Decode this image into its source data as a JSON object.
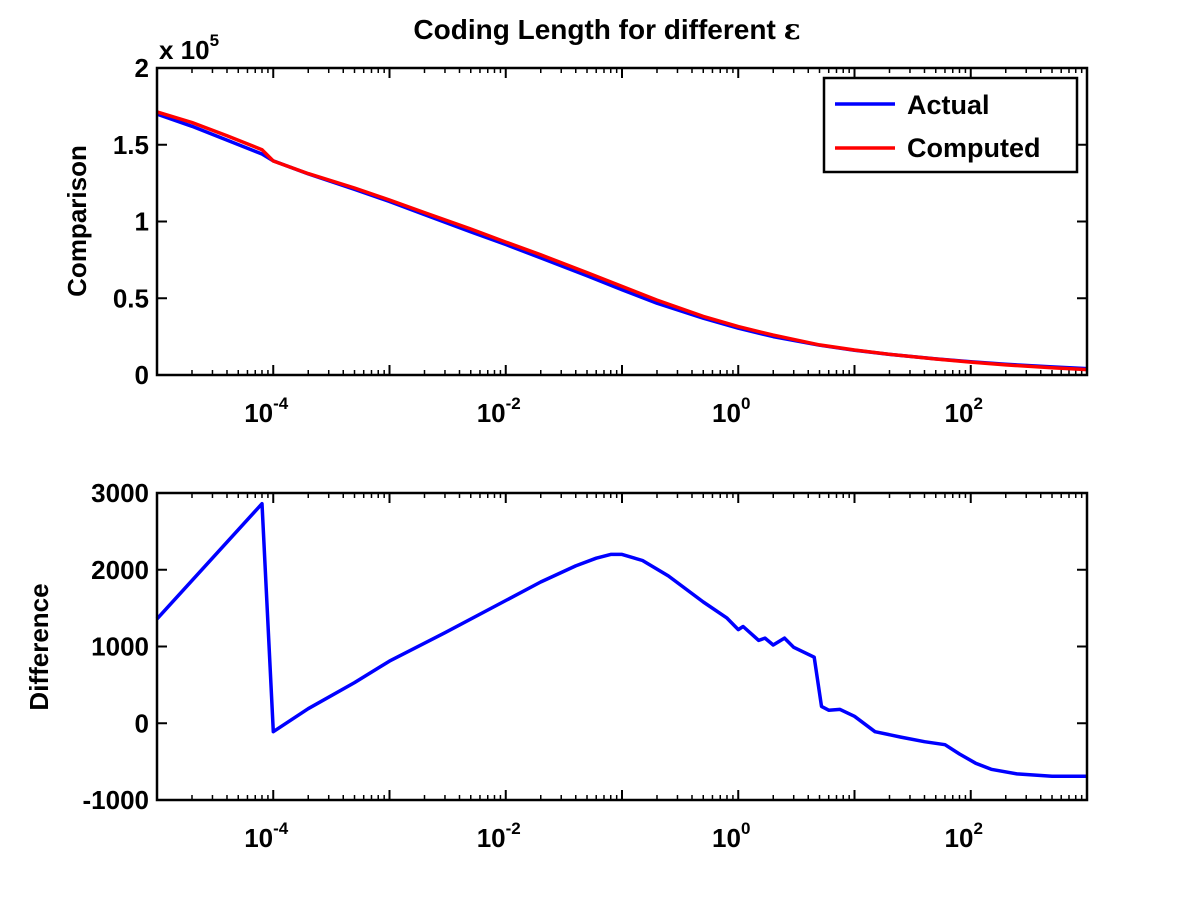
{
  "title_prefix": "Coding Length for different ",
  "title_symbol": "ε",
  "chart_data": [
    {
      "type": "line",
      "ylabel": "Comparison",
      "xscale": "log",
      "xlim": [
        1e-05,
        1000
      ],
      "ylim": [
        0,
        200000
      ],
      "y_multiplier": {
        "base": "x 10",
        "exponent": "5"
      },
      "x_ticks": [
        {
          "base": "10",
          "exponent": "-4",
          "value": 0.0001
        },
        {
          "base": "10",
          "exponent": "-2",
          "value": 0.01
        },
        {
          "base": "10",
          "exponent": "0",
          "value": 1
        },
        {
          "base": "10",
          "exponent": "2",
          "value": 100
        }
      ],
      "y_ticks": [
        {
          "label": "0",
          "value": 0
        },
        {
          "label": "0.5",
          "value": 50000
        },
        {
          "label": "1",
          "value": 100000
        },
        {
          "label": "1.5",
          "value": 150000
        },
        {
          "label": "2",
          "value": 200000
        }
      ],
      "legend": {
        "position": "top-right"
      },
      "series": [
        {
          "name": "Actual",
          "color": "#0000ff",
          "x": [
            1e-05,
            2e-05,
            4e-05,
            8e-05,
            0.0001,
            0.0002,
            0.0005,
            0.001,
            0.002,
            0.005,
            0.01,
            0.02,
            0.05,
            0.1,
            0.2,
            0.5,
            1,
            2,
            5,
            10,
            20,
            50,
            100,
            200,
            500,
            1000
          ],
          "y": [
            170000,
            162000,
            153000,
            144000,
            139500,
            131000,
            121000,
            113000,
            104500,
            93300,
            85000,
            76300,
            64600,
            55500,
            46800,
            37000,
            30500,
            25000,
            19400,
            16100,
            13400,
            10500,
            8600,
            7000,
            5300,
            4200
          ]
        },
        {
          "name": "Computed",
          "color": "#ff0000",
          "x": [
            1e-05,
            2e-05,
            4e-05,
            8e-05,
            0.0001,
            0.0002,
            0.0005,
            0.001,
            0.002,
            0.005,
            0.01,
            0.02,
            0.05,
            0.1,
            0.2,
            0.5,
            1,
            2,
            5,
            10,
            20,
            50,
            100,
            200,
            500,
            1000
          ],
          "y": [
            171400,
            164500,
            155800,
            146800,
            139400,
            131200,
            121800,
            114000,
            105800,
            95100,
            86600,
            78300,
            66700,
            57700,
            48800,
            38200,
            31500,
            26000,
            19600,
            16300,
            13500,
            10400,
            8400,
            6600,
            4700,
            3500
          ]
        }
      ]
    },
    {
      "type": "line",
      "ylabel": "Difference",
      "xscale": "log",
      "xlim": [
        1e-05,
        1000
      ],
      "ylim": [
        -1000,
        3000
      ],
      "x_ticks": [
        {
          "base": "10",
          "exponent": "-4",
          "value": 0.0001
        },
        {
          "base": "10",
          "exponent": "-2",
          "value": 0.01
        },
        {
          "base": "10",
          "exponent": "0",
          "value": 1
        },
        {
          "base": "10",
          "exponent": "2",
          "value": 100
        }
      ],
      "y_ticks": [
        {
          "label": "-1000",
          "value": -1000
        },
        {
          "label": "0",
          "value": 0
        },
        {
          "label": "1000",
          "value": 1000
        },
        {
          "label": "2000",
          "value": 2000
        },
        {
          "label": "3000",
          "value": 3000
        }
      ],
      "series": [
        {
          "color": "#0000ff",
          "x": [
            1e-05,
            8e-05,
            0.0001,
            0.0002,
            0.0005,
            0.001,
            0.003,
            0.01,
            0.02,
            0.04,
            0.06,
            0.08,
            0.1,
            0.15,
            0.25,
            0.5,
            0.8,
            1.0,
            1.1,
            1.5,
            1.7,
            2.0,
            2.5,
            3.0,
            4.5,
            5.2,
            6.0,
            7.5,
            10,
            15,
            25,
            40,
            60,
            80,
            110,
            150,
            250,
            500,
            1000
          ],
          "y": [
            1360,
            2860,
            -110,
            190,
            530,
            810,
            1180,
            1600,
            1840,
            2050,
            2150,
            2200,
            2200,
            2120,
            1920,
            1580,
            1370,
            1220,
            1260,
            1080,
            1110,
            1020,
            1110,
            990,
            860,
            220,
            170,
            180,
            90,
            -110,
            -180,
            -240,
            -280,
            -400,
            -520,
            -600,
            -660,
            -690,
            -690
          ]
        }
      ]
    }
  ]
}
